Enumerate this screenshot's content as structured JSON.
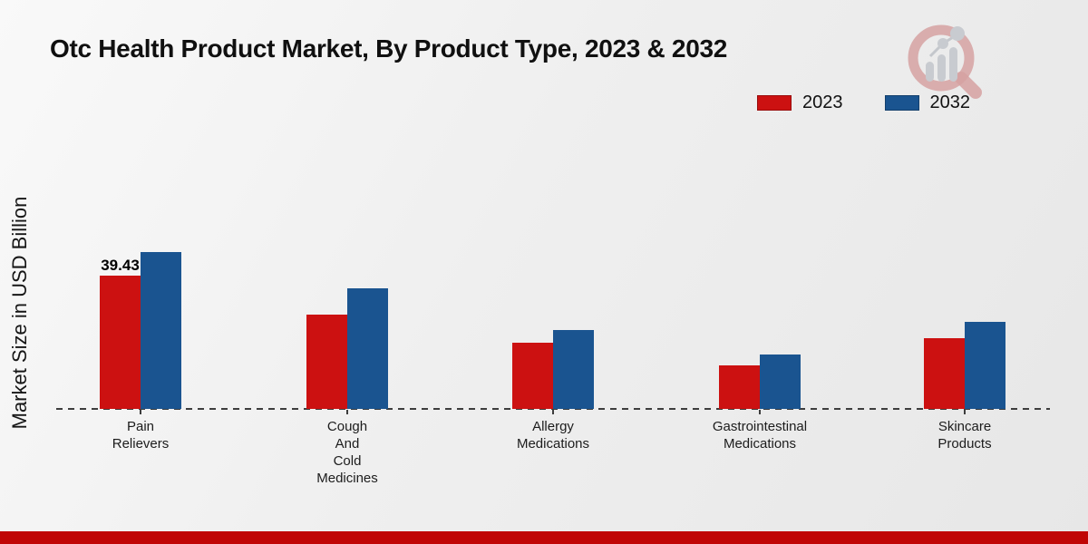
{
  "page": {
    "title": "Otc Health Product Market, By Product Type, 2023 & 2032"
  },
  "y_axis": {
    "label": "Market Size in USD Billion"
  },
  "legend": [
    {
      "label": "2023",
      "color": "#cc1111"
    },
    {
      "label": "2032",
      "color": "#1a5490"
    }
  ],
  "chart_data": {
    "type": "bar",
    "title": "Otc Health Product Market, By Product Type, 2023 & 2032",
    "categories": [
      "Pain Relievers",
      "Cough And Cold Medicines",
      "Allergy Medications",
      "Gastrointestinal Medications",
      "Skincare Products"
    ],
    "category_label_lines": [
      [
        "Pain",
        "Relievers"
      ],
      [
        "Cough",
        "And",
        "Cold",
        "Medicines"
      ],
      [
        "Allergy",
        "Medications"
      ],
      [
        "Gastrointestinal",
        "Medications"
      ],
      [
        "Skincare",
        "Products"
      ]
    ],
    "series": [
      {
        "name": "2023",
        "color": "#cc1111",
        "values": [
          39.43,
          28.0,
          19.7,
          12.8,
          20.9
        ]
      },
      {
        "name": "2032",
        "color": "#1a5490",
        "values": [
          46.6,
          35.8,
          23.3,
          16.0,
          25.8
        ]
      }
    ],
    "xlabel": "",
    "ylabel": "Market Size in USD Billion",
    "ylim": [
      0,
      50
    ],
    "grid": false,
    "baseline_style": "dashed",
    "legend_position": "top-right",
    "data_labels": [
      {
        "series": "2023",
        "category_index": 0,
        "text": "39.43"
      }
    ]
  },
  "logo": {
    "name": "market-research-magnifier-logo",
    "ring_color": "#d6a2a2",
    "bars_color": "#c8cbd0"
  },
  "footer": {
    "stripe_color": "#c00606"
  }
}
